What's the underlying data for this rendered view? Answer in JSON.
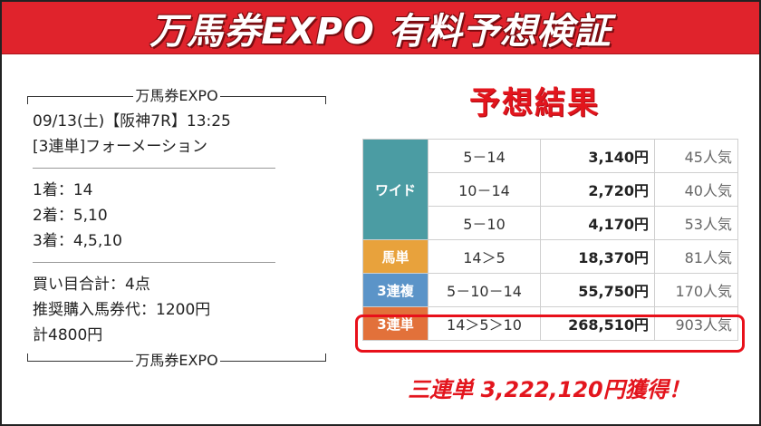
{
  "banner": {
    "title": "万馬券EXPO 有料予想検証"
  },
  "ticket": {
    "bracket_label": "万馬券EXPO",
    "date_race": "09/13(土)【阪神7R】13:25",
    "bet_type": "[3連単]フォーメーション",
    "first": "1着：14",
    "second": "2着：5,10",
    "third": "3着：4,5,10",
    "points": "買い目合計：4点",
    "price": "推奨購入馬券代：1200円",
    "total": "計4800円"
  },
  "results": {
    "title": "予想結果",
    "wide_label": "ワイド",
    "rows": [
      {
        "combo": "5－14",
        "payout": "3,140円",
        "popularity": "45人気"
      },
      {
        "combo": "10－14",
        "payout": "2,720円",
        "popularity": "40人気"
      },
      {
        "combo": "5－10",
        "payout": "4,170円",
        "popularity": "53人気"
      },
      {
        "type": "馬単",
        "combo": "14＞5",
        "payout": "18,370円",
        "popularity": "81人気"
      },
      {
        "type": "3連複",
        "combo": "5－10－14",
        "payout": "55,750円",
        "popularity": "170人気"
      },
      {
        "type": "3連単",
        "combo": "14＞5＞10",
        "payout": "268,510円",
        "popularity": "903人気"
      }
    ]
  },
  "bottom_message": "三連単 3,222,120円獲得！",
  "colors": {
    "banner": "#e0232c",
    "accent_red": "#e3151d",
    "wide": "#4b9ca3",
    "umatan": "#e8a23c",
    "sanrenpuku": "#5b94c8",
    "sanrentan": "#e2713a"
  }
}
